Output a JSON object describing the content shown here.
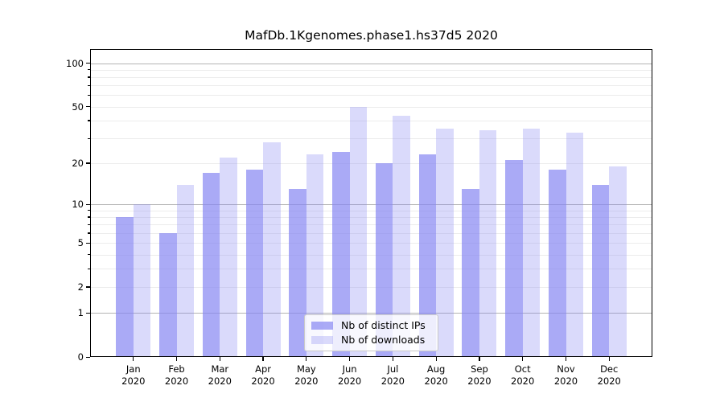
{
  "chart_data": {
    "type": "bar",
    "title": "MafDb.1Kgenomes.phase1.hs37d5 2020",
    "categories": [
      "Jan",
      "Feb",
      "Mar",
      "Apr",
      "May",
      "Jun",
      "Jul",
      "Aug",
      "Sep",
      "Oct",
      "Nov",
      "Dec"
    ],
    "x_second_line": "2020",
    "series": [
      {
        "name": "Nb of distinct IPs",
        "color": "rgba(134,134,242,0.7)",
        "values": [
          8,
          6,
          17,
          18,
          13,
          24,
          20,
          23,
          13,
          21,
          18,
          14
        ]
      },
      {
        "name": "Nb of downloads",
        "color": "rgba(134,134,242,0.3)",
        "values": [
          10,
          14,
          22,
          28,
          23,
          50,
          43,
          35,
          34,
          35,
          33,
          19
        ]
      }
    ],
    "yscale": "log1p",
    "ylim": [
      0,
      125
    ],
    "yticks_labeled": [
      0,
      1,
      2,
      5,
      10,
      20,
      50,
      100
    ],
    "yticks_major": [
      1,
      10,
      100
    ],
    "yticks_minor": [
      2,
      3,
      4,
      5,
      6,
      7,
      8,
      9,
      20,
      30,
      40,
      50,
      60,
      70,
      80,
      90
    ],
    "grid": true,
    "legend_position": "lower center",
    "colors": {
      "major_grid": "#b4b4b4",
      "minor_grid": "#ececec",
      "spine": "#000000",
      "text": "#000000",
      "legend_border": "#c9c9c9"
    }
  },
  "legend": {
    "items": [
      {
        "label": "Nb of distinct IPs",
        "color": "rgba(134,134,242,0.7)"
      },
      {
        "label": "Nb of downloads",
        "color": "rgba(134,134,242,0.3)"
      }
    ]
  }
}
